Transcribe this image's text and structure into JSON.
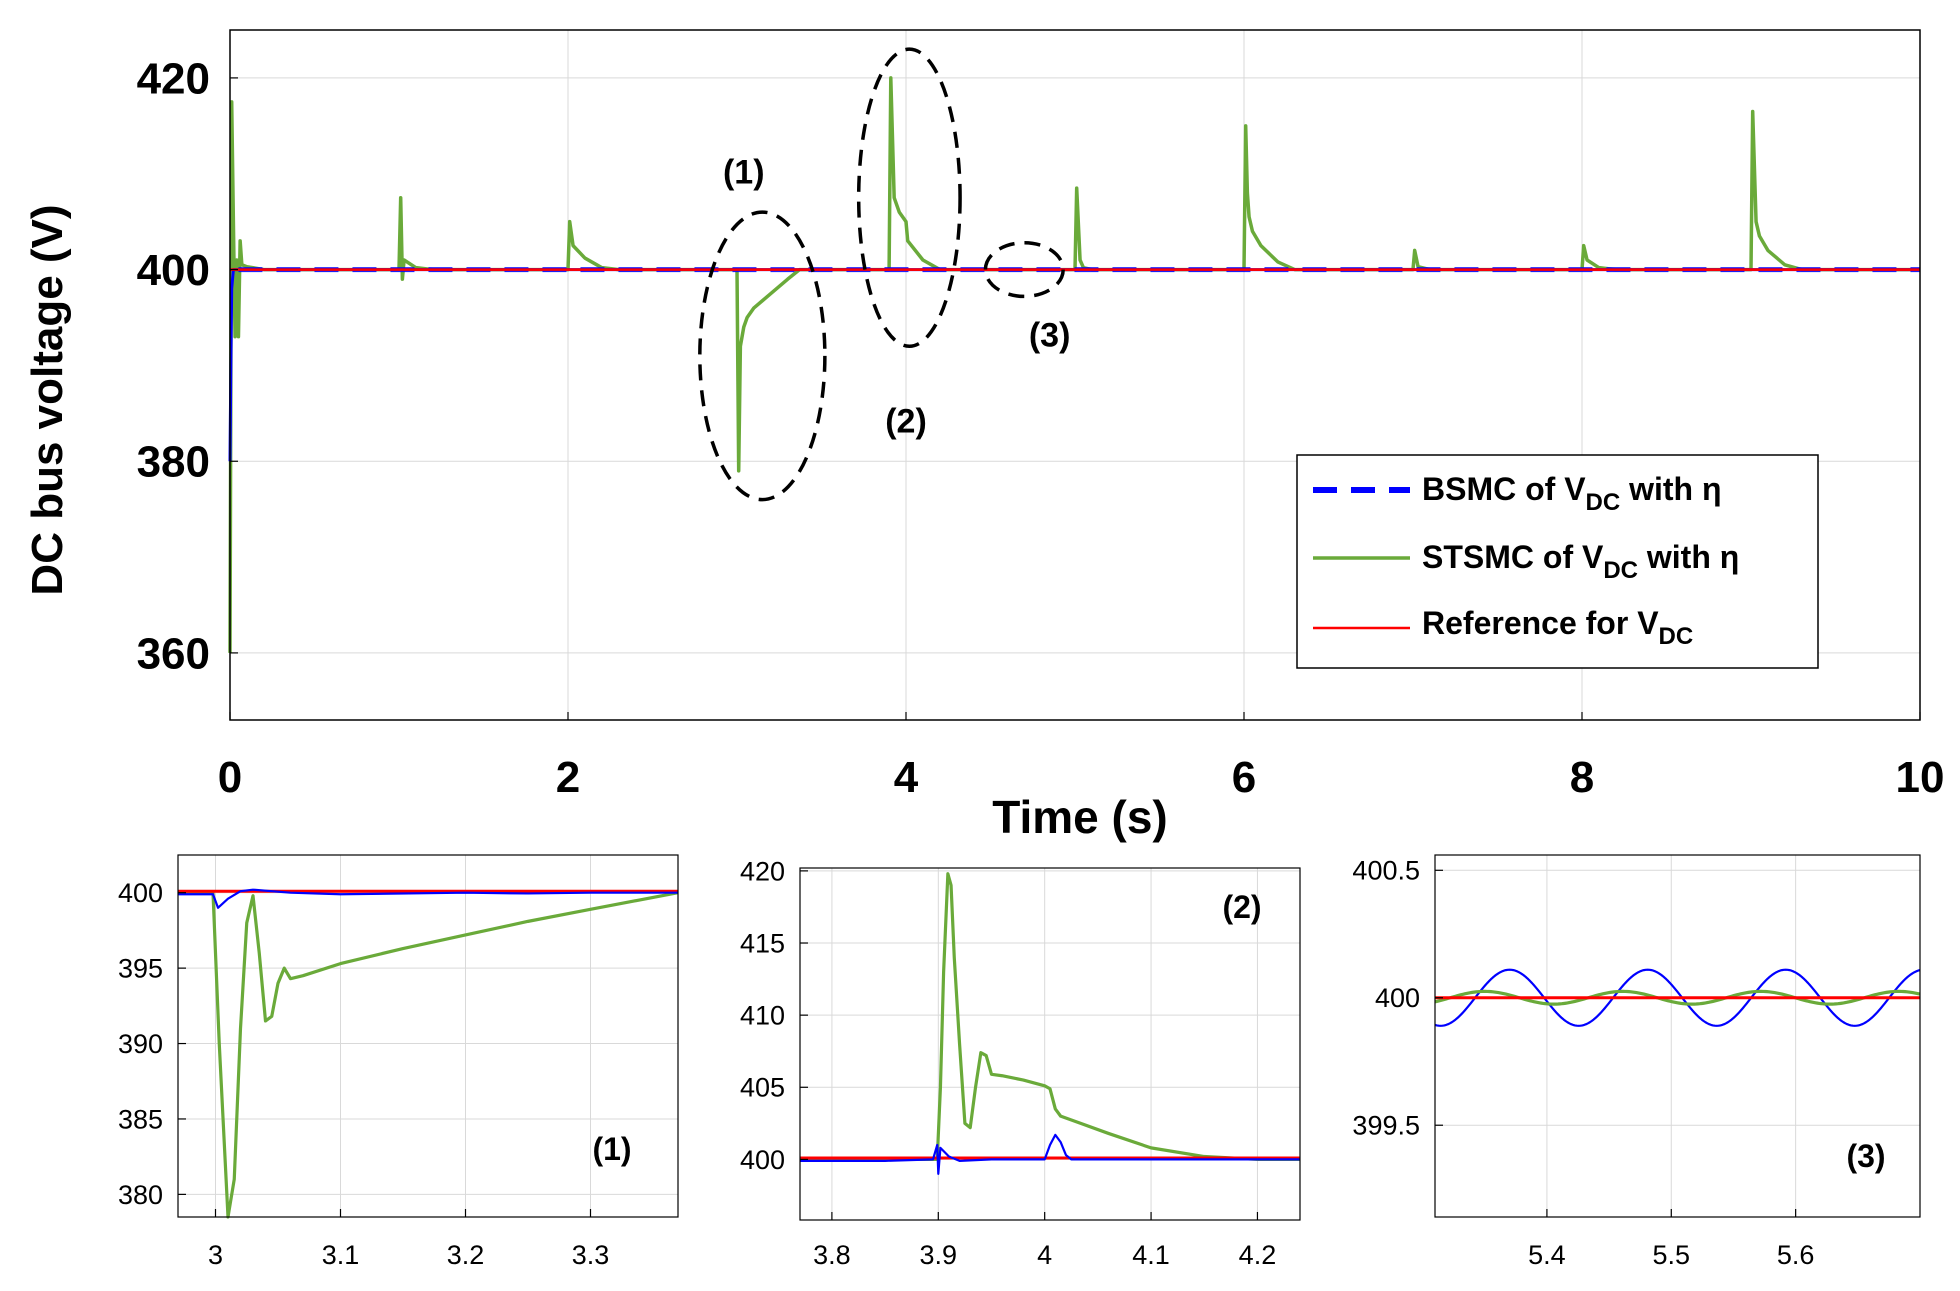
{
  "colors": {
    "bsmc": "#0000ff",
    "stsmc": "#6aaa3a",
    "reference": "#ff0000",
    "grid": "#d9d9d9",
    "axis": "#000000",
    "annotation": "#000000"
  },
  "chart_data": [
    {
      "id": "main",
      "type": "line",
      "xlabel": "Time (s)",
      "ylabel": "DC bus voltage (V)",
      "xlim": [
        0,
        10
      ],
      "ylim": [
        353,
        425
      ],
      "xticks": [
        0,
        2,
        4,
        6,
        8,
        10
      ],
      "yticks": [
        360,
        380,
        400,
        420
      ],
      "grid": true,
      "legend": {
        "position": "lower-right",
        "entries": [
          {
            "label": "BSMC of V",
            "sub": "DC",
            "suffix": " with η",
            "series": "bsmc",
            "style": "dashed"
          },
          {
            "label": "STSMC of V",
            "sub": "DC",
            "suffix": " with η",
            "series": "stsmc",
            "style": "solid"
          },
          {
            "label": "Reference for V",
            "sub": "DC",
            "suffix": "",
            "series": "reference",
            "style": "solid"
          }
        ]
      },
      "annotations": [
        {
          "label": "(1)",
          "x": 3.04,
          "y": 409,
          "ellipse": {
            "cx": 3.15,
            "cy": 391,
            "rx": 0.37,
            "ry": 15
          }
        },
        {
          "label": "(2)",
          "x": 4.0,
          "y": 383,
          "ellipse": {
            "cx": 4.02,
            "cy": 407.5,
            "rx": 0.3,
            "ry": 15.5
          }
        },
        {
          "label": "(3)",
          "x": 4.85,
          "y": 392,
          "ellipse": {
            "cx": 4.7,
            "cy": 400,
            "rx": 0.23,
            "ry": 2.8
          }
        }
      ],
      "series": [
        {
          "name": "STSMC",
          "color_key": "stsmc",
          "points": [
            [
              0,
              360
            ],
            [
              0.01,
              417.5
            ],
            [
              0.02,
              405
            ],
            [
              0.03,
              393
            ],
            [
              0.04,
              401
            ],
            [
              0.05,
              393
            ],
            [
              0.06,
              403
            ],
            [
              0.07,
              400.5
            ],
            [
              0.1,
              400.3
            ],
            [
              0.2,
              400
            ],
            [
              1.0,
              400
            ],
            [
              1.01,
              407.5
            ],
            [
              1.02,
              399
            ],
            [
              1.03,
              401
            ],
            [
              1.1,
              400.2
            ],
            [
              1.2,
              400
            ],
            [
              2.0,
              400
            ],
            [
              2.01,
              405
            ],
            [
              2.03,
              402.5
            ],
            [
              2.1,
              401.2
            ],
            [
              2.2,
              400.2
            ],
            [
              2.3,
              400
            ],
            [
              3.0,
              400
            ],
            [
              3.01,
              379
            ],
            [
              3.02,
              392
            ],
            [
              3.04,
              394
            ],
            [
              3.06,
              395
            ],
            [
              3.1,
              396
            ],
            [
              3.2,
              397.5
            ],
            [
              3.3,
              399
            ],
            [
              3.37,
              400
            ],
            [
              3.9,
              400
            ],
            [
              3.91,
              420
            ],
            [
              3.93,
              407.5
            ],
            [
              3.96,
              406
            ],
            [
              4.0,
              405
            ],
            [
              4.01,
              403
            ],
            [
              4.1,
              401
            ],
            [
              4.2,
              400
            ],
            [
              5.0,
              400
            ],
            [
              5.01,
              408.5
            ],
            [
              5.03,
              401
            ],
            [
              5.05,
              400.2
            ],
            [
              5.1,
              400
            ],
            [
              6.0,
              400
            ],
            [
              6.01,
              415
            ],
            [
              6.02,
              408
            ],
            [
              6.03,
              405.5
            ],
            [
              6.05,
              404
            ],
            [
              6.1,
              402.5
            ],
            [
              6.2,
              400.8
            ],
            [
              6.3,
              400
            ],
            [
              7.0,
              400
            ],
            [
              7.01,
              402
            ],
            [
              7.03,
              400.3
            ],
            [
              7.1,
              400
            ],
            [
              8.0,
              400
            ],
            [
              8.01,
              402.5
            ],
            [
              8.03,
              401
            ],
            [
              8.1,
              400.2
            ],
            [
              8.2,
              400
            ],
            [
              9.0,
              400
            ],
            [
              9.01,
              416.5
            ],
            [
              9.03,
              405
            ],
            [
              9.05,
              403.5
            ],
            [
              9.1,
              402
            ],
            [
              9.2,
              400.5
            ],
            [
              9.3,
              400
            ],
            [
              10,
              400
            ]
          ]
        },
        {
          "name": "BSMC",
          "color_key": "bsmc",
          "points": [
            [
              0,
              380
            ],
            [
              0.005,
              390
            ],
            [
              0.01,
              398
            ],
            [
              0.02,
              400
            ],
            [
              0.04,
              400
            ],
            [
              10,
              400
            ]
          ]
        },
        {
          "name": "Reference",
          "color_key": "reference",
          "points": [
            [
              0,
              400
            ],
            [
              10,
              400
            ]
          ]
        }
      ]
    },
    {
      "id": "inset1",
      "type": "line",
      "xlim": [
        2.97,
        3.37
      ],
      "ylim": [
        378.5,
        402.5
      ],
      "xticks": [
        3,
        3.1,
        3.2,
        3.3
      ],
      "yticks": [
        380,
        385,
        390,
        395,
        400
      ],
      "grid": true,
      "label": "(1)",
      "series": [
        {
          "name": "STSMC",
          "color_key": "stsmc",
          "points": [
            [
              2.97,
              400
            ],
            [
              2.998,
              400
            ],
            [
              3.003,
              390
            ],
            [
              3.01,
              378.5
            ],
            [
              3.015,
              381
            ],
            [
              3.02,
              391
            ],
            [
              3.025,
              398
            ],
            [
              3.03,
              399.8
            ],
            [
              3.035,
              396
            ],
            [
              3.04,
              391.5
            ],
            [
              3.045,
              391.8
            ],
            [
              3.05,
              394
            ],
            [
              3.055,
              395
            ],
            [
              3.06,
              394.3
            ],
            [
              3.07,
              394.5
            ],
            [
              3.1,
              395.3
            ],
            [
              3.15,
              396.3
            ],
            [
              3.2,
              397.2
            ],
            [
              3.25,
              398.1
            ],
            [
              3.3,
              398.9
            ],
            [
              3.37,
              400
            ]
          ]
        },
        {
          "name": "Reference",
          "color_key": "reference",
          "points": [
            [
              2.97,
              400.1
            ],
            [
              3.37,
              400.1
            ]
          ]
        },
        {
          "name": "BSMC",
          "color_key": "bsmc",
          "points": [
            [
              2.97,
              399.9
            ],
            [
              2.998,
              399.9
            ],
            [
              3.002,
              399.0
            ],
            [
              3.01,
              399.6
            ],
            [
              3.02,
              400.1
            ],
            [
              3.03,
              400.2
            ],
            [
              3.06,
              400
            ],
            [
              3.1,
              399.9
            ],
            [
              3.2,
              400
            ],
            [
              3.25,
              399.95
            ],
            [
              3.3,
              400
            ],
            [
              3.37,
              400
            ]
          ]
        }
      ]
    },
    {
      "id": "inset2",
      "type": "line",
      "xlim": [
        3.77,
        4.24
      ],
      "ylim": [
        395.8,
        420.2
      ],
      "xticks": [
        3.8,
        3.9,
        4,
        4.1,
        4.2
      ],
      "yticks": [
        400,
        405,
        410,
        415,
        420
      ],
      "grid": true,
      "label": "(2)",
      "series": [
        {
          "name": "STSMC",
          "color_key": "stsmc",
          "points": [
            [
              3.77,
              400
            ],
            [
              3.899,
              400
            ],
            [
              3.902,
              405
            ],
            [
              3.905,
              413
            ],
            [
              3.909,
              419.8
            ],
            [
              3.912,
              419
            ],
            [
              3.915,
              414
            ],
            [
              3.92,
              408
            ],
            [
              3.925,
              402.5
            ],
            [
              3.93,
              402.2
            ],
            [
              3.935,
              405
            ],
            [
              3.94,
              407.4
            ],
            [
              3.945,
              407.2
            ],
            [
              3.95,
              405.9
            ],
            [
              3.96,
              405.8
            ],
            [
              3.98,
              405.5
            ],
            [
              4.0,
              405.1
            ],
            [
              4.005,
              404.9
            ],
            [
              4.01,
              403.5
            ],
            [
              4.015,
              403
            ],
            [
              4.03,
              402.6
            ],
            [
              4.06,
              401.8
            ],
            [
              4.1,
              400.8
            ],
            [
              4.15,
              400.2
            ],
            [
              4.2,
              400
            ],
            [
              4.24,
              400
            ]
          ]
        },
        {
          "name": "Reference",
          "color_key": "reference",
          "points": [
            [
              3.77,
              400.1
            ],
            [
              4.24,
              400.1
            ]
          ]
        },
        {
          "name": "BSMC",
          "color_key": "bsmc",
          "points": [
            [
              3.77,
              399.9
            ],
            [
              3.85,
              399.9
            ],
            [
              3.895,
              400
            ],
            [
              3.899,
              401
            ],
            [
              3.9,
              399
            ],
            [
              3.902,
              400.8
            ],
            [
              3.91,
              400.2
            ],
            [
              3.92,
              399.9
            ],
            [
              3.95,
              400
            ],
            [
              4.0,
              400
            ],
            [
              4.005,
              401
            ],
            [
              4.01,
              401.7
            ],
            [
              4.015,
              401.2
            ],
            [
              4.02,
              400.3
            ],
            [
              4.025,
              400
            ],
            [
              4.1,
              400
            ],
            [
              4.24,
              400
            ]
          ]
        }
      ]
    },
    {
      "id": "inset3",
      "type": "line",
      "xlim": [
        5.31,
        5.7
      ],
      "ylim": [
        399.14,
        400.56
      ],
      "xticks": [
        5.4,
        5.5,
        5.6
      ],
      "yticks": [
        399.5,
        400,
        400.5
      ],
      "grid": true,
      "label": "(3)",
      "series": [
        {
          "name": "BSMC",
          "kind": "sine",
          "color_key": "bsmc",
          "center": 400,
          "amplitude": 0.11,
          "period": 0.111,
          "peak_x": 5.37
        },
        {
          "name": "STSMC",
          "kind": "sine",
          "color_key": "stsmc",
          "center": 400,
          "amplitude": 0.025,
          "period": 0.111,
          "peak_x": 5.35
        },
        {
          "name": "Reference",
          "color_key": "reference",
          "points": [
            [
              5.31,
              400
            ],
            [
              5.7,
              400
            ]
          ]
        }
      ]
    }
  ]
}
